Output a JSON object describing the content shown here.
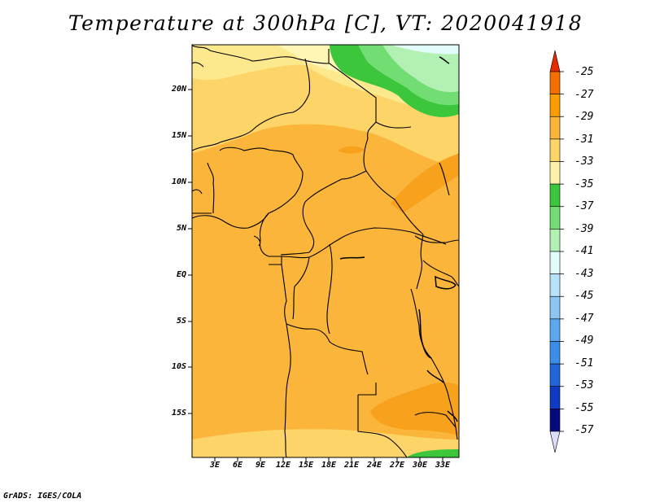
{
  "title": "Temperature at 300hPa [C], VT: 2020041918",
  "credit": "GrADS: IGES/COLA",
  "lat_labels": [
    "20N",
    "15N",
    "10N",
    "5N",
    "EQ",
    "5S",
    "10S",
    "15S"
  ],
  "lon_labels": [
    "3E",
    "6E",
    "9E",
    "12E",
    "15E",
    "18E",
    "21E",
    "24E",
    "27E",
    "30E",
    "33E"
  ],
  "legend": {
    "labels": [
      "-25",
      "-27",
      "-29",
      "-31",
      "-33",
      "-35",
      "-37",
      "-39",
      "-41",
      "-43",
      "-45",
      "-47",
      "-49",
      "-51",
      "-53",
      "-55",
      "-57"
    ],
    "colors": [
      "#f04a00",
      "#f56f00",
      "#fa9d00",
      "#fab53a",
      "#fcd467",
      "#fef2a8",
      "#3cc63c",
      "#72dd72",
      "#b3f0b3",
      "#e2fbfb",
      "#b6e2fb",
      "#8cc6f5",
      "#5ba8ef",
      "#3b8ee8",
      "#2166d8",
      "#0e3ac4",
      "#070a7a"
    ],
    "top_color": "#e82a00",
    "bottom_color": "#dcdcfa"
  },
  "field_colors": {
    "c29": "#fab53a",
    "c27": "#f8a11c",
    "c31": "#fcd467",
    "c33": "#fde98d",
    "c35": "#fff6b6",
    "c37": "#3cc63c",
    "c39": "#72dd72",
    "c41": "#b3f0b3",
    "c43": "#e2fbfb"
  }
}
